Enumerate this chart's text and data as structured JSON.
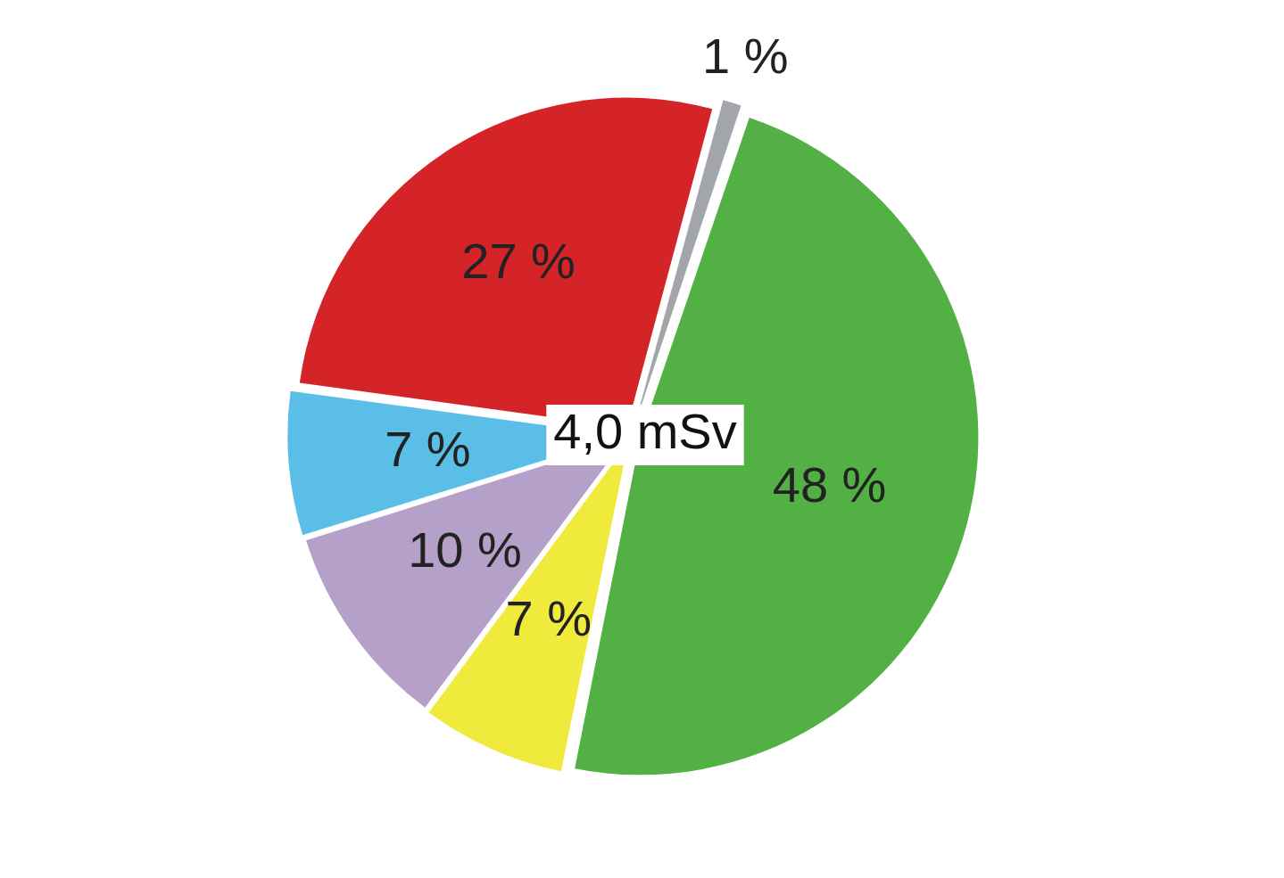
{
  "chart_data": {
    "type": "pie",
    "categories": [
      null,
      null,
      null,
      null,
      null,
      null
    ],
    "values": [
      1,
      48,
      7,
      10,
      7,
      27
    ],
    "value_labels": [
      "1 %",
      "48 %",
      "7 %",
      "10 %",
      "7 %",
      "27 %"
    ],
    "colors": [
      "#a2a6aa",
      "#52b044",
      "#f0ea3c",
      "#b4a0c8",
      "#5abee6",
      "#d42428"
    ],
    "annotations": [
      "4,0 mSv"
    ],
    "legend": false
  }
}
